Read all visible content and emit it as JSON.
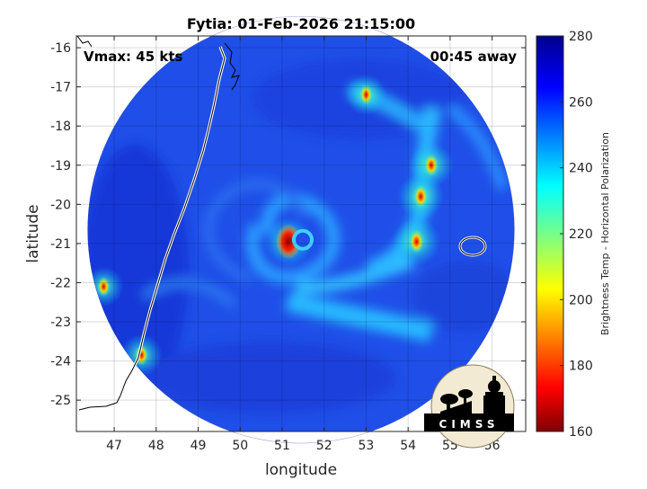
{
  "chart_data": {
    "type": "heatmap",
    "title": "Fytia: 01-Feb-2026 21:15:00",
    "xlabel": "longitude",
    "ylabel": "latitude",
    "xlim": [
      46.1,
      56.8
    ],
    "ylim": [
      -25.8,
      -15.7
    ],
    "x_ticks": [
      47,
      48,
      49,
      50,
      51,
      52,
      53,
      54,
      55,
      56
    ],
    "y_ticks": [
      -16,
      -17,
      -18,
      -19,
      -20,
      -21,
      -22,
      -23,
      -24,
      -25
    ],
    "grid": true,
    "annotations": {
      "vmax": "Vmax: 45 kts",
      "away": "00:45 away"
    },
    "colorbar": {
      "label": "Brightness Temp - Horizontal Polarization",
      "min": 160,
      "max": 280,
      "ticks": [
        160,
        180,
        200,
        220,
        240,
        260,
        280
      ]
    },
    "swath": {
      "center_lon": 51.45,
      "center_lat": -20.65,
      "radius_deg": 5.08
    },
    "low_tb_features": [
      {
        "lon": 51.15,
        "lat": -20.95,
        "value": 170
      },
      {
        "lon": 54.2,
        "lat": -20.95,
        "value": 175
      },
      {
        "lon": 54.3,
        "lat": -19.8,
        "value": 180
      },
      {
        "lon": 54.55,
        "lat": -19.0,
        "value": 185
      },
      {
        "lon": 53.0,
        "lat": -17.2,
        "value": 200
      },
      {
        "lon": 47.65,
        "lat": -23.85,
        "value": 195
      },
      {
        "lon": 46.75,
        "lat": -22.1,
        "value": 205
      }
    ]
  },
  "logo": {
    "text": "CIMSS"
  }
}
